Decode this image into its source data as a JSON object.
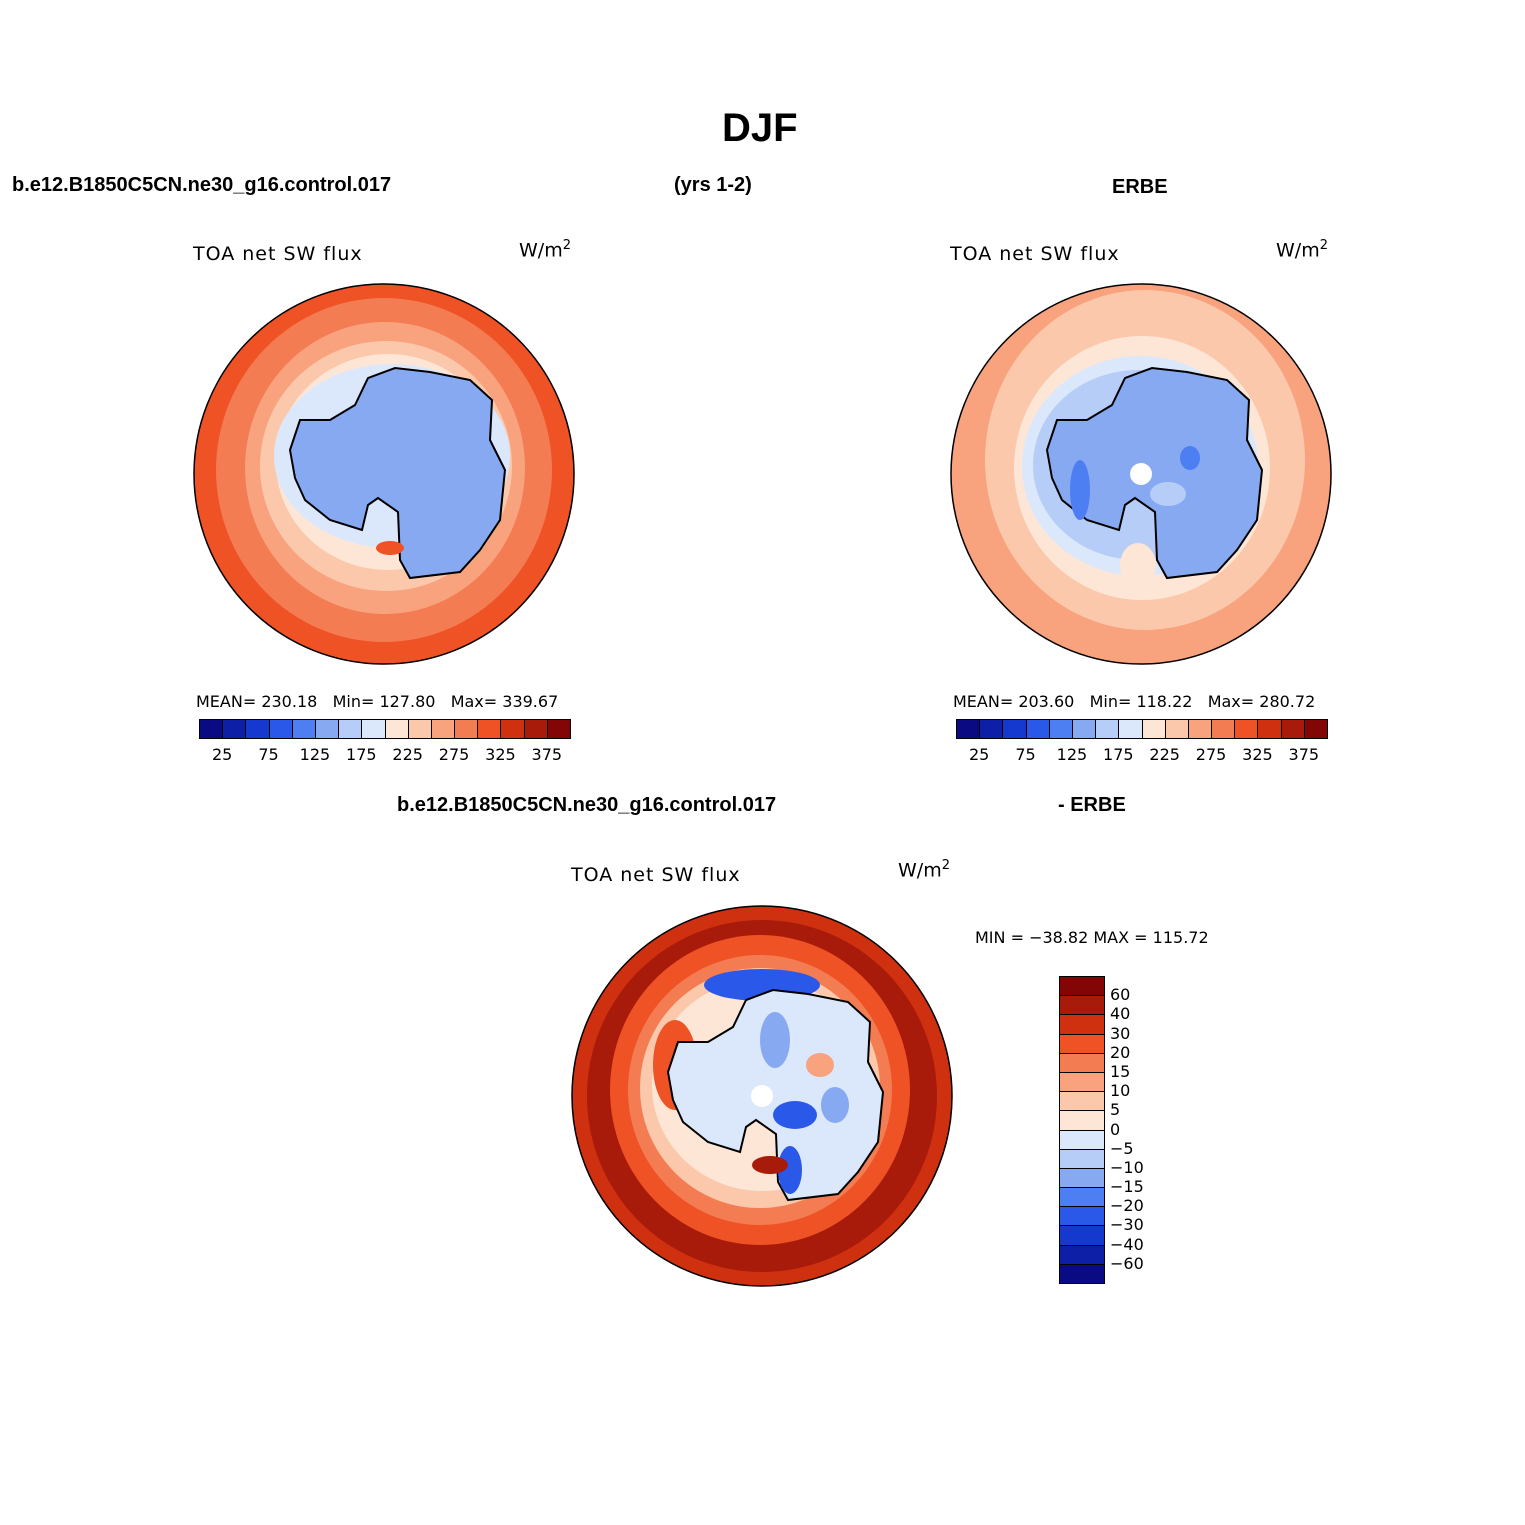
{
  "figure": {
    "season": "DJF",
    "case_name": "b.e12.B1850C5CN.ne30_g16.control.017",
    "years": "(yrs 1-2)",
    "obs_name": "ERBE",
    "diff_obs": "- ERBE"
  },
  "panels": {
    "model": {
      "title": "TOA net SW flux",
      "units": "W/m",
      "units_sup": "2",
      "stats": "MEAN= 230.18   Min= 127.80   Max= 339.67"
    },
    "obs": {
      "title": "TOA net SW flux",
      "units": "W/m",
      "units_sup": "2",
      "stats": "MEAN= 203.60   Min= 118.22   Max= 280.72"
    },
    "diff": {
      "title": "TOA net SW flux",
      "units": "W/m",
      "units_sup": "2",
      "minmax": "MIN = −38.82 MAX = 115.72"
    }
  },
  "colorbar_abs": {
    "colors": [
      "#0a0a82",
      "#0c1fa6",
      "#1538cf",
      "#2a58e8",
      "#4d7ef2",
      "#86a9f2",
      "#b6cdf7",
      "#dbe8fb",
      "#fde6d6",
      "#fcc8ac",
      "#f8a27e",
      "#f47c52",
      "#ee5225",
      "#cf300f",
      "#a81a0a",
      "#820606"
    ],
    "labels": [
      "25",
      "75",
      "125",
      "175",
      "225",
      "275",
      "325",
      "375"
    ]
  },
  "colorbar_diff": {
    "colors": [
      "#820606",
      "#a81a0a",
      "#cf300f",
      "#ee5225",
      "#f47c52",
      "#f8a27e",
      "#fcc8ac",
      "#fde6d6",
      "#dbe8fb",
      "#b6cdf7",
      "#86a9f2",
      "#4d7ef2",
      "#2a58e8",
      "#1538cf",
      "#0c1fa6",
      "#0a0a82"
    ],
    "labels": [
      "60",
      "40",
      "30",
      "20",
      "15",
      "10",
      "5",
      "0",
      "−5",
      "−10",
      "−15",
      "−20",
      "−30",
      "−40",
      "−60"
    ]
  }
}
